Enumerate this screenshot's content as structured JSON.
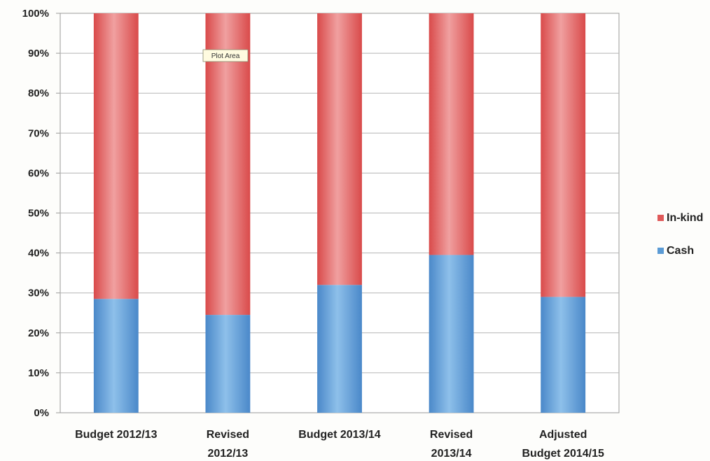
{
  "chart_data": {
    "type": "bar",
    "stacked": true,
    "normalized": true,
    "categories": [
      [
        "Budget 2012/13"
      ],
      [
        "Revised",
        "2012/13"
      ],
      [
        "Budget 2013/14"
      ],
      [
        "Revised",
        "2013/14"
      ],
      [
        "Adjusted",
        "Budget 2014/15"
      ]
    ],
    "series": [
      {
        "name": "Cash",
        "values": [
          28.5,
          24.5,
          32,
          39.5,
          29
        ],
        "color": "#5b9bd5"
      },
      {
        "name": "In-kind",
        "values": [
          71.5,
          75.5,
          68,
          60.5,
          71
        ],
        "color": "#e05a5a"
      }
    ],
    "ylim": [
      0,
      100
    ],
    "yticks": [
      "0%",
      "10%",
      "20%",
      "30%",
      "40%",
      "50%",
      "60%",
      "70%",
      "80%",
      "90%",
      "100%"
    ],
    "grid": true,
    "legend_placement": "right",
    "legend_order": [
      "In-kind",
      "Cash"
    ],
    "tooltip": "Plot Area"
  }
}
